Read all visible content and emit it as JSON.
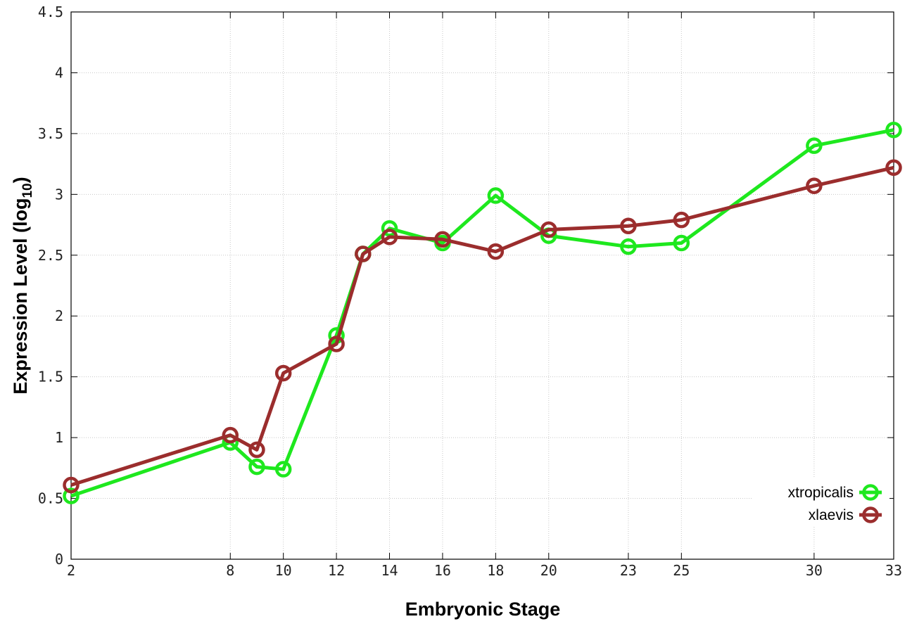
{
  "chart_data": {
    "type": "line",
    "xlabel": "Embryonic Stage",
    "ylabel_main": "Expression Level (log",
    "ylabel_sub": "10",
    "ylabel_close": ")",
    "xlim": [
      2,
      33
    ],
    "ylim": [
      0,
      4.5
    ],
    "x_ticks": [
      2,
      8,
      10,
      12,
      14,
      16,
      18,
      20,
      23,
      25,
      30,
      33
    ],
    "x_tick_labels": [
      "2",
      "8",
      "10",
      "12",
      "14",
      "16",
      "18",
      "20",
      "23",
      "25",
      "30",
      "33"
    ],
    "y_ticks": [
      0,
      0.5,
      1,
      1.5,
      2,
      2.5,
      3,
      3.5,
      4,
      4.5
    ],
    "y_tick_labels": [
      "0",
      "0.5",
      "1",
      "1.5",
      "2",
      "2.5",
      "3",
      "3.5",
      "4",
      "4.5"
    ],
    "x_positions": [
      2,
      8,
      9,
      10,
      12,
      13,
      14,
      16,
      18,
      20,
      23,
      25,
      30,
      33
    ],
    "grid": true,
    "legend_position": "bottom-right",
    "series": [
      {
        "name": "xtropicalis",
        "color": "#1ee81e",
        "values": [
          0.52,
          0.96,
          0.76,
          0.74,
          1.84,
          2.51,
          2.72,
          2.6,
          2.99,
          2.66,
          2.57,
          2.6,
          3.4,
          3.53
        ]
      },
      {
        "name": "xlaevis",
        "color": "#9b2d2d",
        "values": [
          0.61,
          1.02,
          0.9,
          1.53,
          1.77,
          2.51,
          2.65,
          2.63,
          2.53,
          2.71,
          2.74,
          2.79,
          3.07,
          3.22
        ]
      }
    ]
  }
}
